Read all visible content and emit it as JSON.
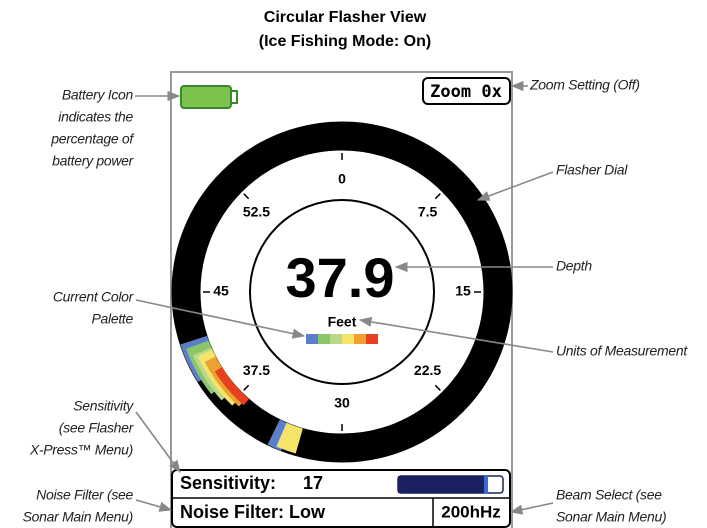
{
  "header": {
    "title": "Circular Flasher View",
    "subtitle": "(Ice Fishing Mode: On)"
  },
  "screen": {
    "zoom": "Zoom 0x",
    "dial_labels": [
      "0",
      "7.5",
      "15",
      "22.5",
      "30",
      "37.5",
      "45",
      "52.5"
    ],
    "depth": "37.9",
    "units": "Feet",
    "sensitivity_label": "Sensitivity:",
    "sensitivity_value": "17",
    "noise_filter": "Noise Filter: Low",
    "beam": "200hHz"
  },
  "callouts": {
    "battery": [
      "Battery Icon",
      "indicates the",
      "percentage of",
      "battery power"
    ],
    "palette": [
      "Current Color",
      "Palette"
    ],
    "sensitivity": [
      "Sensitivity",
      "(see Flasher",
      "X-Press™ Menu)"
    ],
    "noise": [
      "Noise Filter (see",
      "Sonar Main Menu)"
    ],
    "zoom": [
      "Zoom Setting (Off)"
    ],
    "dial": [
      "Flasher Dial"
    ],
    "depth": [
      "Depth"
    ],
    "units": [
      "Units of Measurement"
    ],
    "beam": [
      "Beam Select (see",
      "Sonar Main Menu)"
    ]
  }
}
